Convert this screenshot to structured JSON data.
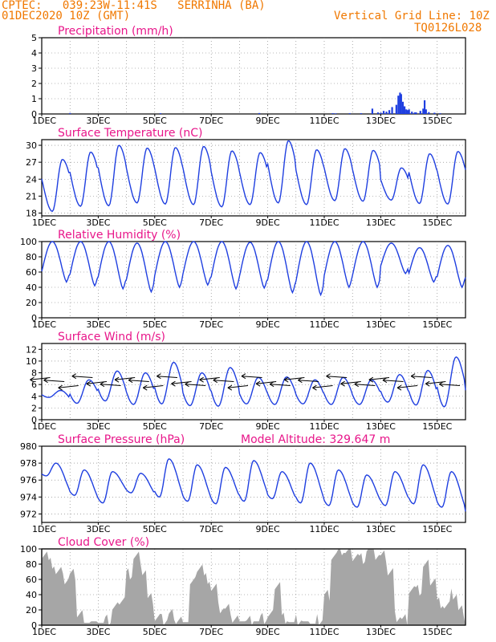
{
  "header": {
    "line1": "CPTEC:   039:23W-11:41S   SERRINHA (BA)",
    "line2": "01DEC2020 10Z (GMT)",
    "grid_note": "Vertical Grid Line: 10Z",
    "code": "TQ0126L028"
  },
  "colors": {
    "header": "#f07800",
    "title": "#e8168a",
    "line": "#1f3fe0",
    "bar": "#1f3fe0",
    "cloud": "#a6a6a6",
    "grid": "#000000"
  },
  "x_axis": {
    "ticks": [
      "1DEC",
      "3DEC",
      "5DEC",
      "7DEC",
      "9DEC",
      "11DEC",
      "13DEC",
      "15DEC"
    ],
    "tick_days": [
      0,
      2,
      4,
      6,
      8,
      10,
      12,
      14
    ],
    "day_range": [
      0,
      15
    ]
  },
  "chart_data": [
    {
      "id": "precip",
      "type": "bar",
      "title": "Precipitation (mm/h)",
      "ylim": [
        0,
        5
      ],
      "yticks": [
        0,
        1,
        2,
        3,
        4,
        5
      ],
      "grid": true,
      "x_days": [
        1.0,
        4.2,
        7.7,
        10.3,
        10.4,
        10.9,
        11.3,
        11.7,
        11.9,
        12.0,
        12.1,
        12.2,
        12.3,
        12.4,
        12.55,
        12.62,
        12.68,
        12.72,
        12.78,
        12.84,
        12.9,
        12.95,
        13.0,
        13.1,
        13.2,
        13.25,
        13.4,
        13.5,
        13.55,
        13.6,
        13.7,
        13.9,
        14.1
      ],
      "values": [
        0.06,
        0.05,
        0.06,
        0.05,
        0.04,
        0.05,
        0.05,
        0.35,
        0.1,
        0.08,
        0.2,
        0.15,
        0.25,
        0.45,
        0.6,
        1.2,
        1.4,
        1.3,
        0.8,
        0.5,
        0.3,
        0.25,
        0.3,
        0.15,
        0.1,
        0.1,
        0.2,
        0.35,
        0.9,
        0.3,
        0.12,
        0.08,
        0.05
      ]
    },
    {
      "id": "temp",
      "type": "line",
      "title": "Surface Temperature (nC)",
      "ylim": [
        17.5,
        31
      ],
      "yticks": [
        18,
        21,
        24,
        27,
        30
      ],
      "grid": true,
      "mins": [
        18.3,
        19.2,
        19.3,
        19.8,
        19.6,
        19.5,
        19.1,
        19.5,
        19.8,
        19.5,
        20.2,
        20.1,
        20.3,
        19.7,
        19.6,
        20.1
      ],
      "maxs": [
        27.5,
        28.8,
        30.0,
        29.5,
        29.6,
        29.8,
        29.0,
        28.7,
        30.8,
        29.2,
        29.4,
        29.1,
        26.0,
        28.5,
        28.9,
        29.0
      ],
      "series": [
        {
          "name": "",
          "values": []
        }
      ]
    },
    {
      "id": "rh",
      "type": "line",
      "title": "Relative Humidity (%)",
      "ylim": [
        0,
        100
      ],
      "yticks": [
        0,
        20,
        40,
        60,
        80,
        100
      ],
      "grid": true,
      "mins": [
        47,
        42,
        38,
        34,
        40,
        43,
        38,
        39,
        33,
        30,
        40,
        40,
        58,
        47,
        40,
        40
      ],
      "maxs": [
        100,
        100,
        100,
        98,
        100,
        100,
        100,
        99,
        100,
        100,
        100,
        100,
        98,
        92,
        95,
        90
      ],
      "series": [
        {
          "name": "",
          "values": []
        }
      ]
    },
    {
      "id": "wind",
      "type": "line",
      "title": "Surface Wind (m/s)",
      "ylim": [
        0,
        13
      ],
      "yticks": [
        0,
        2,
        4,
        6,
        8,
        10,
        12
      ],
      "grid": true,
      "mins": [
        3.8,
        2.8,
        3.2,
        2.6,
        2.7,
        2.4,
        2.3,
        2.7,
        2.6,
        2.7,
        2.6,
        2.6,
        3.0,
        2.5,
        2.2,
        3.0
      ],
      "maxs": [
        5.0,
        6.8,
        8.3,
        8.0,
        9.8,
        8.0,
        8.9,
        7.2,
        7.3,
        6.8,
        7.2,
        6.8,
        7.7,
        8.4,
        10.7,
        8.2
      ],
      "arrows": "wind direction arrows every 6h",
      "series": [
        {
          "name": "",
          "values": []
        }
      ]
    },
    {
      "id": "pres",
      "type": "line",
      "title": "Surface Pressure (hPa)",
      "ylim": [
        971,
        980
      ],
      "yticks": [
        972,
        974,
        976,
        978,
        980
      ],
      "grid": true,
      "mins": [
        976.5,
        974.2,
        973.3,
        974.5,
        974.0,
        973.5,
        973.2,
        973.5,
        973.8,
        973.3,
        973.0,
        972.8,
        973.0,
        973.2,
        972.8,
        972.0
      ],
      "maxs": [
        978.0,
        977.2,
        977.0,
        976.8,
        978.5,
        977.8,
        977.5,
        978.3,
        977.0,
        978.0,
        977.2,
        976.6,
        977.0,
        977.8,
        977.0,
        974.0
      ],
      "annotation": "Model Altitude: 329.647 m",
      "series": [
        {
          "name": "",
          "values": []
        }
      ]
    },
    {
      "id": "cloud",
      "type": "area",
      "title": "Cloud Cover (%)",
      "ylim": [
        0,
        100
      ],
      "yticks": [
        0,
        20,
        40,
        60,
        80,
        100
      ],
      "grid": true,
      "levels": [
        95,
        82,
        70,
        60,
        66,
        15,
        3,
        5,
        3,
        6,
        22,
        35,
        68,
        90,
        72,
        34,
        10,
        8,
        15,
        8,
        4,
        55,
        78,
        62,
        48,
        22,
        20,
        8,
        5,
        6,
        5,
        8,
        12,
        55,
        10,
        4,
        6,
        5,
        2,
        8,
        40,
        92,
        98,
        96,
        92,
        88,
        100,
        92,
        90,
        70,
        12,
        8,
        48,
        45,
        78,
        60,
        30,
        25,
        40,
        18
      ]
    }
  ]
}
